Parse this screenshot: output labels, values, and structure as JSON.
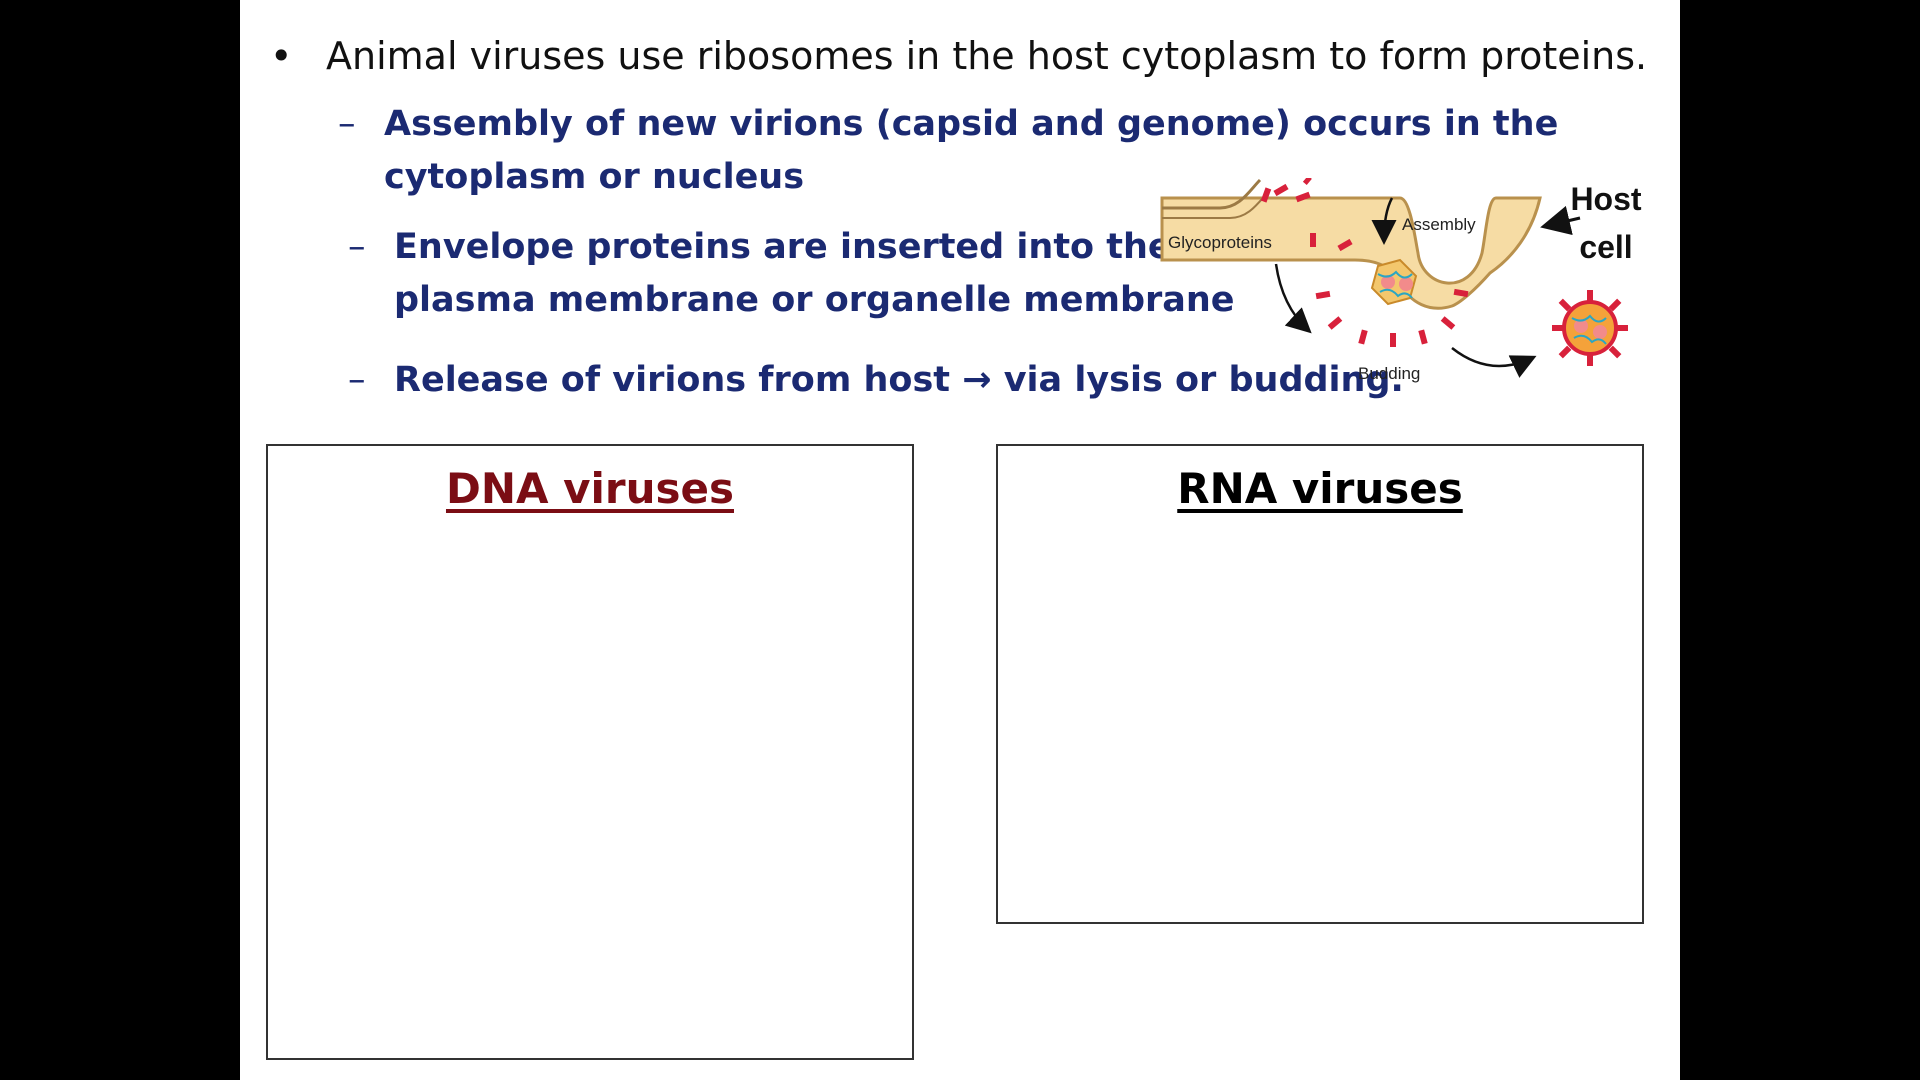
{
  "slide": {
    "main_bullet": {
      "symbol": "•",
      "text": "Animal viruses use ribosomes in the host cytoplasm to form proteins."
    },
    "sub_bullets": [
      {
        "dash": "–",
        "line1": "Assembly of new virions (capsid and genome) occurs in the",
        "line2": "cytoplasm or nucleus"
      },
      {
        "dash": "–",
        "line1": "Envelope proteins are inserted into the",
        "line2": "plasma membrane or organelle membrane"
      },
      {
        "dash": "–",
        "line1": "Release of virions from host → via lysis or budding."
      }
    ],
    "diagram": {
      "labels": {
        "glycoproteins": "Glycoproteins",
        "assembly": "Assembly",
        "budding": "Budding",
        "host_line1": "Host",
        "host_line2": "cell"
      }
    },
    "boxes": {
      "dna": {
        "title": "DNA viruses",
        "color": "#7b0d14"
      },
      "rna": {
        "title": "RNA viruses",
        "color": "#000000"
      }
    }
  },
  "colors": {
    "sub_bullet_text": "#1b2a72",
    "cell_fill": "#f6dca4",
    "glycoprotein": "#d8213b"
  }
}
